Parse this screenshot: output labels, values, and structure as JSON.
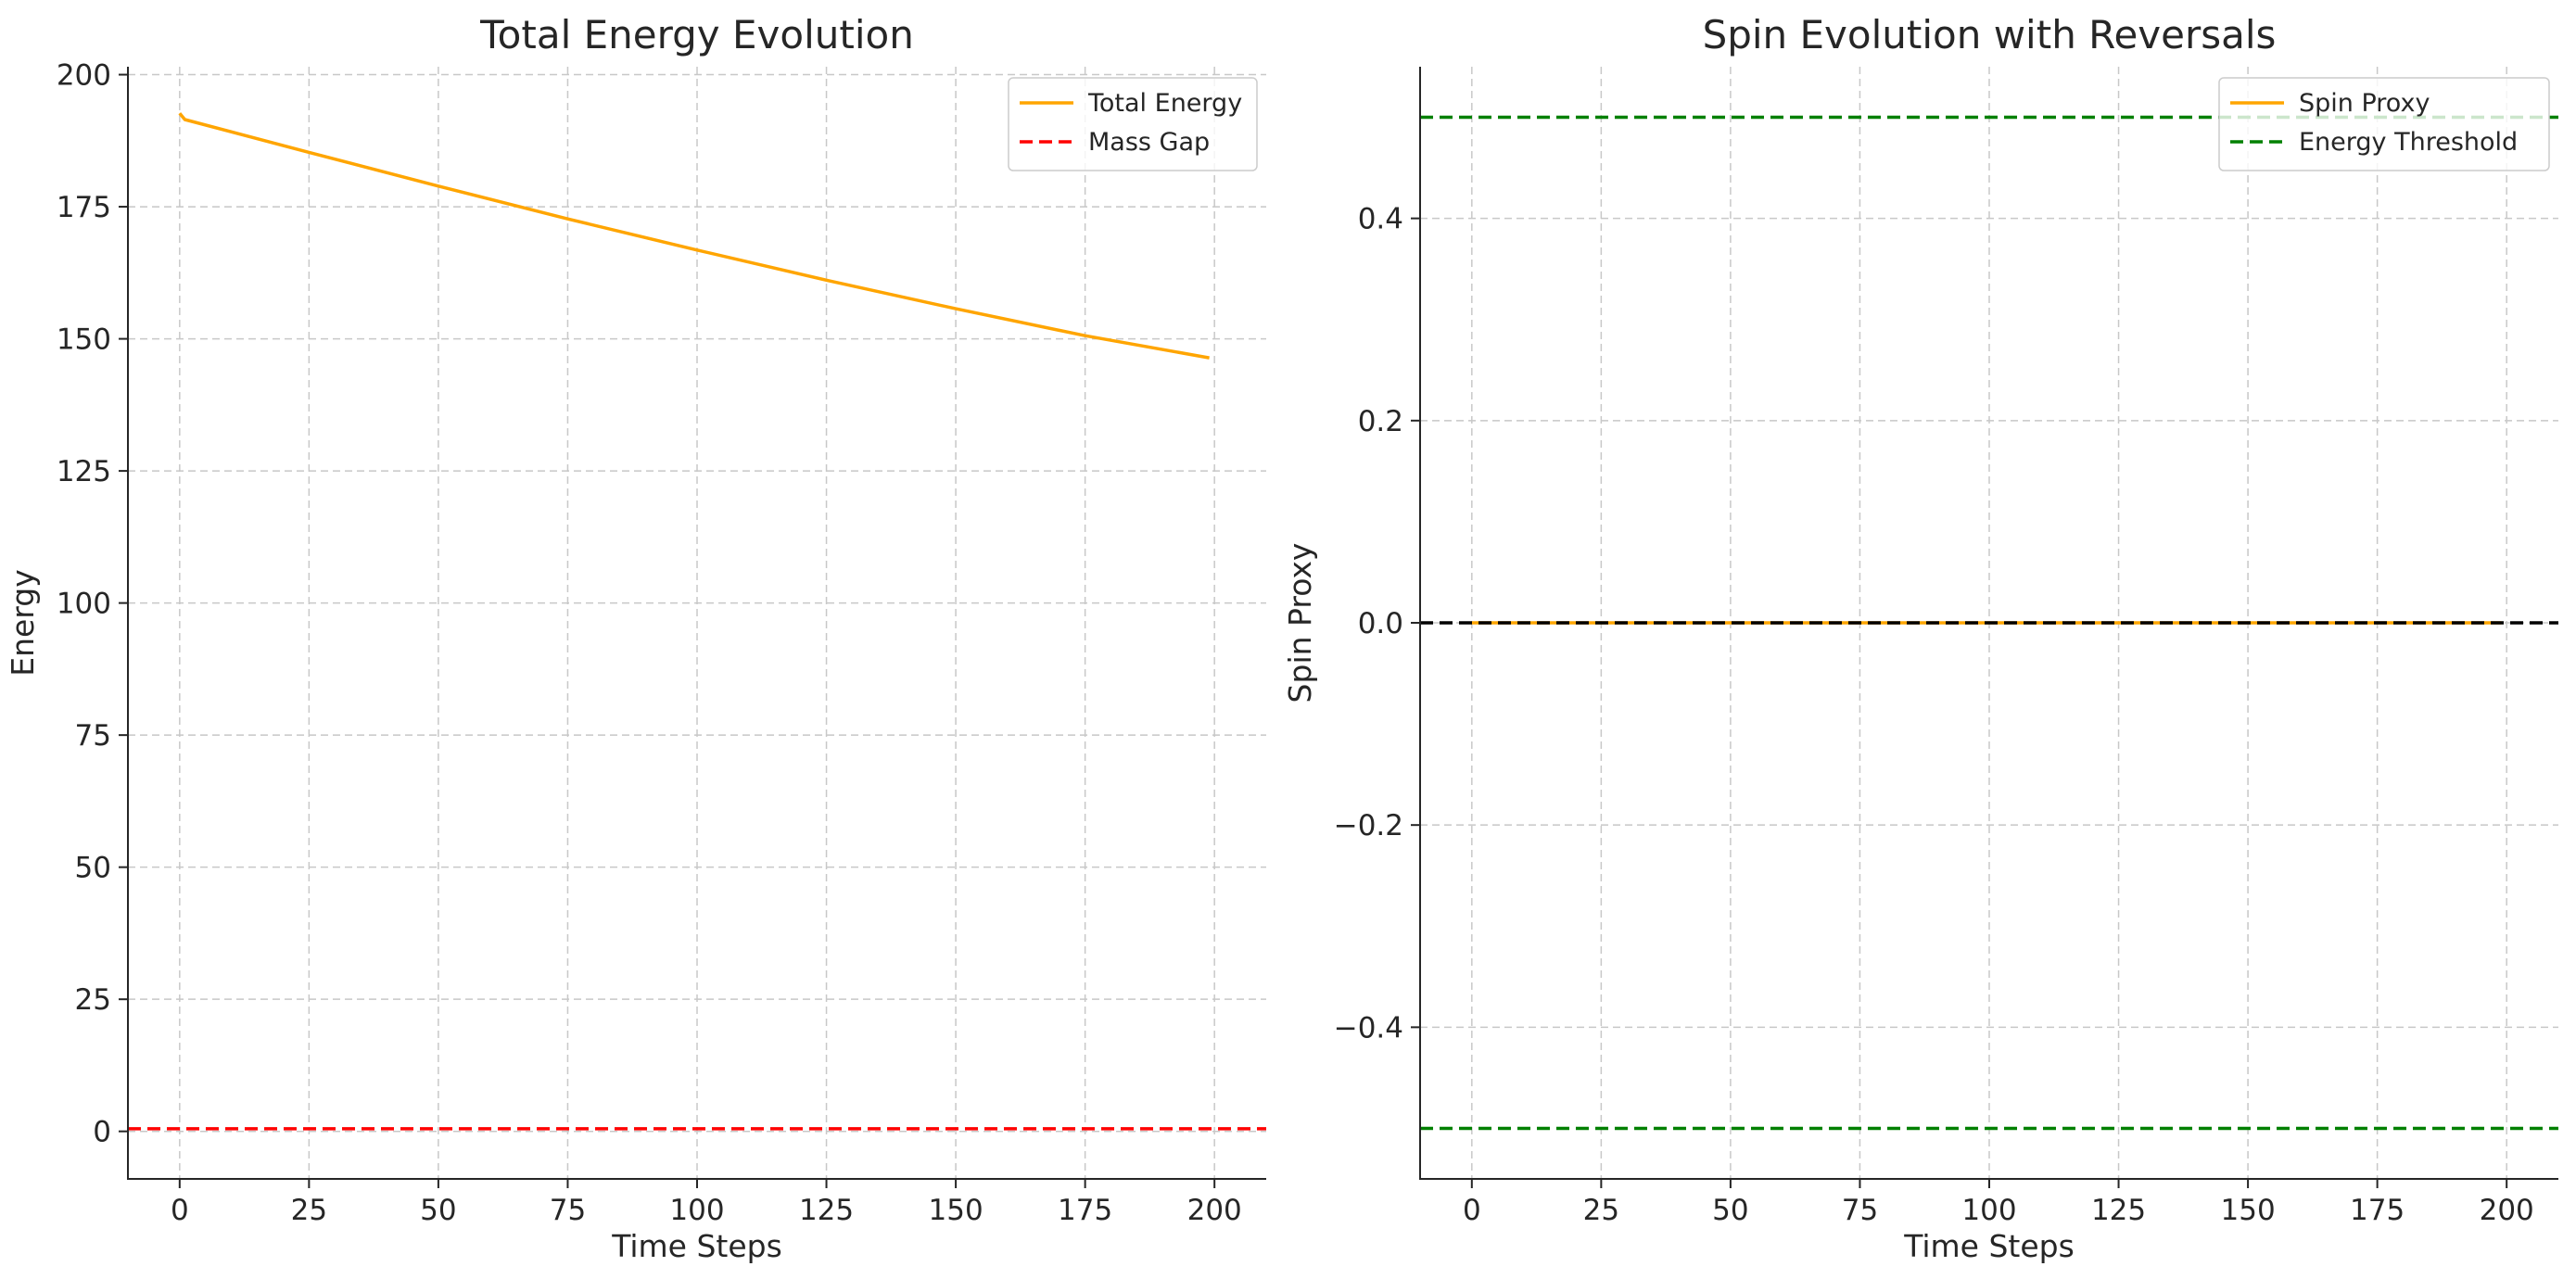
{
  "chart_data": [
    {
      "type": "line",
      "title": "Total Energy Evolution",
      "xlabel": "Time Steps",
      "ylabel": "Energy",
      "xlim": [
        -10,
        210
      ],
      "ylim": [
        -9,
        201.5
      ],
      "xticks": [
        0,
        25,
        50,
        75,
        100,
        125,
        150,
        175,
        200
      ],
      "yticks": [
        0,
        25,
        50,
        75,
        100,
        125,
        150,
        175,
        200
      ],
      "grid": true,
      "legend_position": "top-right",
      "series": [
        {
          "name": "Total Energy",
          "style": "solid",
          "color": "#FFA500",
          "x": [
            0,
            1,
            25,
            50,
            75,
            100,
            125,
            150,
            175,
            199
          ],
          "y": [
            192.7,
            191.5,
            185.3,
            178.9,
            172.7,
            166.8,
            161.1,
            155.7,
            150.6,
            146.4
          ]
        },
        {
          "name": "Mass Gap",
          "style": "dashed",
          "color": "#FF0000",
          "hline": 0.5
        }
      ]
    },
    {
      "type": "line",
      "title": "Spin Evolution with Reversals",
      "xlabel": "Time Steps",
      "ylabel": "Spin Proxy",
      "xlim": [
        -10,
        210
      ],
      "ylim": [
        -0.55,
        0.55
      ],
      "xticks": [
        0,
        25,
        50,
        75,
        100,
        125,
        150,
        175,
        200
      ],
      "yticks": [
        -0.4,
        -0.2,
        0.0,
        0.2,
        0.4
      ],
      "ytick_labels": [
        "−0.4",
        "−0.2",
        "0.0",
        "0.2",
        "0.4"
      ],
      "grid": true,
      "legend_position": "top-right",
      "series": [
        {
          "name": "Spin Proxy",
          "style": "solid",
          "color": "#FFA500",
          "x": [
            0,
            199
          ],
          "y": [
            0.0,
            0.0
          ]
        },
        {
          "name": "Energy Threshold",
          "style": "dashed",
          "color": "#008000",
          "hlines": [
            0.5,
            -0.5
          ]
        },
        {
          "style": "dashed",
          "color": "#000000",
          "hline": 0.0
        }
      ]
    }
  ]
}
